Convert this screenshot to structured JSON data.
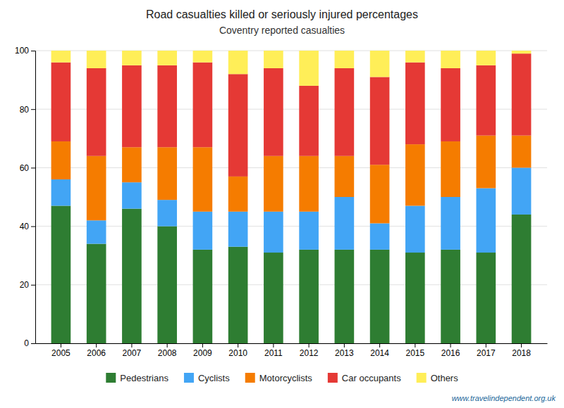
{
  "chart_data": {
    "type": "bar",
    "stacked": true,
    "title": "Road casualties killed or seriously injured percentages",
    "subtitle": "Coventry reported casualties",
    "annotations": [
      "www.travelindependent.org.uk"
    ],
    "categories": [
      "2005",
      "2006",
      "2007",
      "2008",
      "2009",
      "2010",
      "2011",
      "2012",
      "2013",
      "2014",
      "2015",
      "2016",
      "2017",
      "2018"
    ],
    "series": [
      {
        "name": "Pedestrians",
        "color": "#2e7d32",
        "values": [
          47,
          34,
          46,
          40,
          32,
          33,
          31,
          32,
          32,
          32,
          31,
          32,
          31,
          44
        ]
      },
      {
        "name": "Cyclists",
        "color": "#42a5f5",
        "values": [
          9,
          8,
          9,
          9,
          13,
          12,
          14,
          13,
          18,
          9,
          16,
          18,
          22,
          16
        ]
      },
      {
        "name": "Motorcyclists",
        "color": "#f57c00",
        "values": [
          13,
          22,
          12,
          18,
          22,
          12,
          19,
          19,
          14,
          20,
          21,
          19,
          18,
          11
        ]
      },
      {
        "name": "Car occupants",
        "color": "#e53935",
        "values": [
          27,
          30,
          28,
          28,
          29,
          35,
          30,
          24,
          30,
          30,
          28,
          25,
          24,
          28
        ]
      },
      {
        "name": "Others",
        "color": "#ffee58",
        "values": [
          4,
          6,
          5,
          5,
          4,
          8,
          6,
          12,
          6,
          9,
          4,
          6,
          5,
          1
        ]
      }
    ],
    "ylim": [
      0,
      100
    ],
    "yticks": [
      0,
      20,
      40,
      60,
      80,
      100
    ],
    "grid": true,
    "legend": "bottom"
  }
}
